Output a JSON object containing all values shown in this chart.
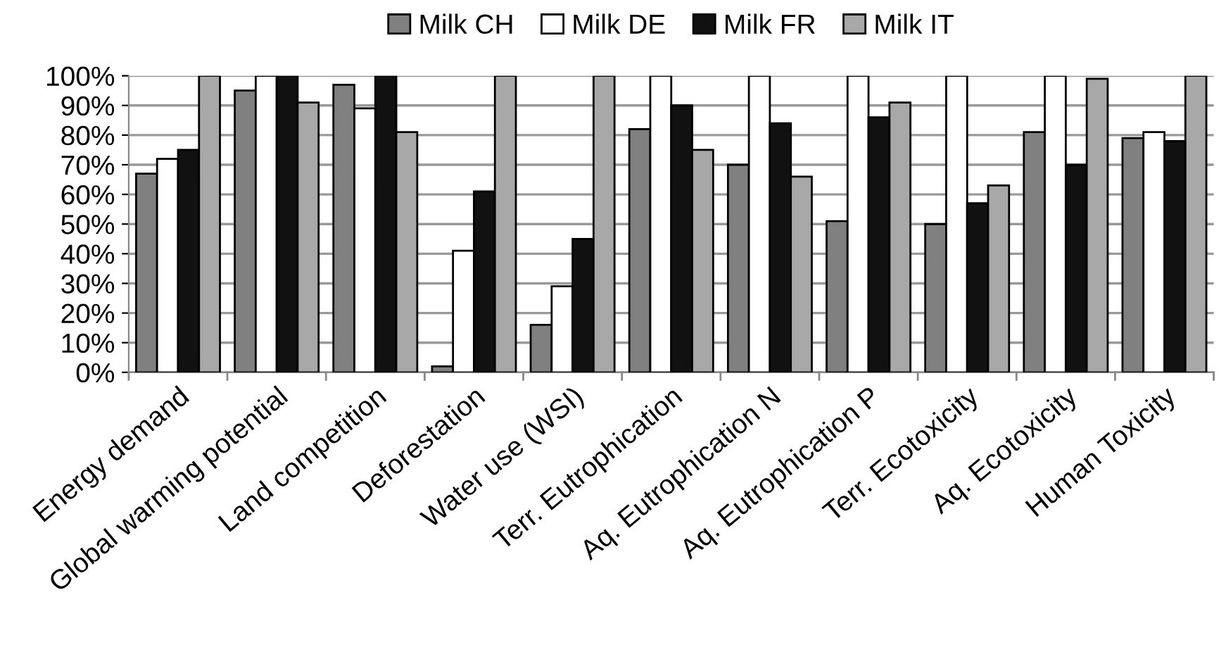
{
  "chart_data": {
    "type": "bar",
    "categories": [
      "Energy demand",
      "Global warming potential",
      "Land competition",
      "Deforestation",
      "Water use (WSI)",
      "Terr. Eutrophication",
      "Aq. Eutrophication N",
      "Aq. Eutrophication P",
      "Terr. Ecotoxicity",
      "Aq. Ecotoxicity",
      "Human Toxicity"
    ],
    "series": [
      {
        "name": "Milk CH",
        "color": "#808080",
        "values": [
          67,
          95,
          97,
          2,
          16,
          82,
          70,
          51,
          50,
          81,
          79
        ]
      },
      {
        "name": "Milk DE",
        "color": "#ffffff",
        "values": [
          72,
          100,
          89,
          41,
          29,
          100,
          100,
          100,
          100,
          100,
          81
        ]
      },
      {
        "name": "Milk FR",
        "color": "#111111",
        "values": [
          75,
          100,
          100,
          61,
          45,
          90,
          84,
          86,
          57,
          70,
          78
        ]
      },
      {
        "name": "Milk IT",
        "color": "#a8a8a8",
        "values": [
          100,
          91,
          81,
          100,
          100,
          75,
          66,
          91,
          63,
          99,
          100
        ]
      }
    ],
    "ylim": [
      0,
      100
    ],
    "yticks": [
      {
        "value": 0,
        "label": "0%"
      },
      {
        "value": 10,
        "label": "10%"
      },
      {
        "value": 20,
        "label": "20%"
      },
      {
        "value": 30,
        "label": "30%"
      },
      {
        "value": 40,
        "label": "40%"
      },
      {
        "value": 50,
        "label": "50%"
      },
      {
        "value": 60,
        "label": "60%"
      },
      {
        "value": 70,
        "label": "70%"
      },
      {
        "value": 80,
        "label": "80%"
      },
      {
        "value": 90,
        "label": "90%"
      },
      {
        "value": 100,
        "label": "100%"
      }
    ],
    "grid": "y",
    "legend": "top"
  }
}
